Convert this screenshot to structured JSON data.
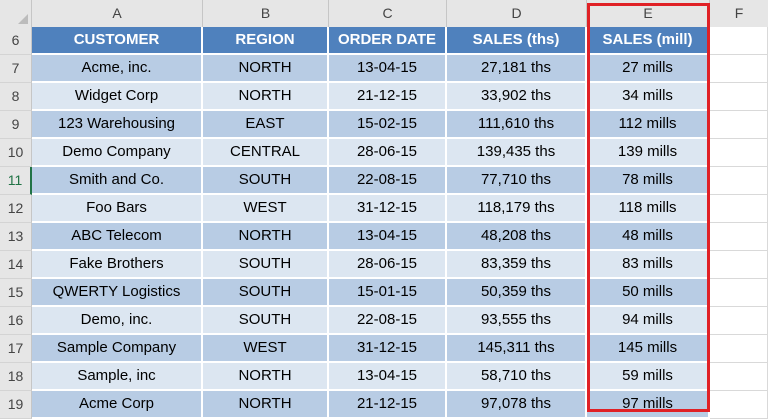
{
  "columns": [
    "A",
    "B",
    "C",
    "D",
    "E",
    "F"
  ],
  "header_row": {
    "row_number": "6",
    "cells": [
      "CUSTOMER",
      "REGION",
      "ORDER DATE",
      "SALES (ths)",
      "SALES (mill)"
    ]
  },
  "rows": [
    {
      "num": "7",
      "cells": [
        "Acme, inc.",
        "NORTH",
        "13-04-15",
        "27,181 ths",
        "27 mills"
      ]
    },
    {
      "num": "8",
      "cells": [
        "Widget Corp",
        "NORTH",
        "21-12-15",
        "33,902 ths",
        "34 mills"
      ]
    },
    {
      "num": "9",
      "cells": [
        "123 Warehousing",
        "EAST",
        "15-02-15",
        "111,610 ths",
        "112 mills"
      ]
    },
    {
      "num": "10",
      "cells": [
        "Demo Company",
        "CENTRAL",
        "28-06-15",
        "139,435 ths",
        "139 mills"
      ]
    },
    {
      "num": "11",
      "cells": [
        "Smith and Co.",
        "SOUTH",
        "22-08-15",
        "77,710 ths",
        "78 mills"
      ]
    },
    {
      "num": "12",
      "cells": [
        "Foo Bars",
        "WEST",
        "31-12-15",
        "118,179 ths",
        "118 mills"
      ]
    },
    {
      "num": "13",
      "cells": [
        "ABC Telecom",
        "NORTH",
        "13-04-15",
        "48,208 ths",
        "48 mills"
      ]
    },
    {
      "num": "14",
      "cells": [
        "Fake Brothers",
        "SOUTH",
        "28-06-15",
        "83,359 ths",
        "83 mills"
      ]
    },
    {
      "num": "15",
      "cells": [
        "QWERTY Logistics",
        "SOUTH",
        "15-01-15",
        "50,359 ths",
        "50 mills"
      ]
    },
    {
      "num": "16",
      "cells": [
        "Demo, inc.",
        "SOUTH",
        "22-08-15",
        "93,555 ths",
        "94 mills"
      ]
    },
    {
      "num": "17",
      "cells": [
        "Sample Company",
        "WEST",
        "31-12-15",
        "145,311 ths",
        "145 mills"
      ]
    },
    {
      "num": "18",
      "cells": [
        "Sample, inc",
        "NORTH",
        "13-04-15",
        "58,710 ths",
        "59 mills"
      ]
    },
    {
      "num": "19",
      "cells": [
        "Acme Corp",
        "NORTH",
        "21-12-15",
        "97,078 ths",
        "97 mills"
      ]
    }
  ],
  "active_row": "11",
  "colors": {
    "header_fill": "#4f81bd",
    "band_dark": "#b8cce4",
    "band_light": "#dce6f1",
    "highlight_border": "#e02126",
    "active_row_accent": "#217346"
  }
}
